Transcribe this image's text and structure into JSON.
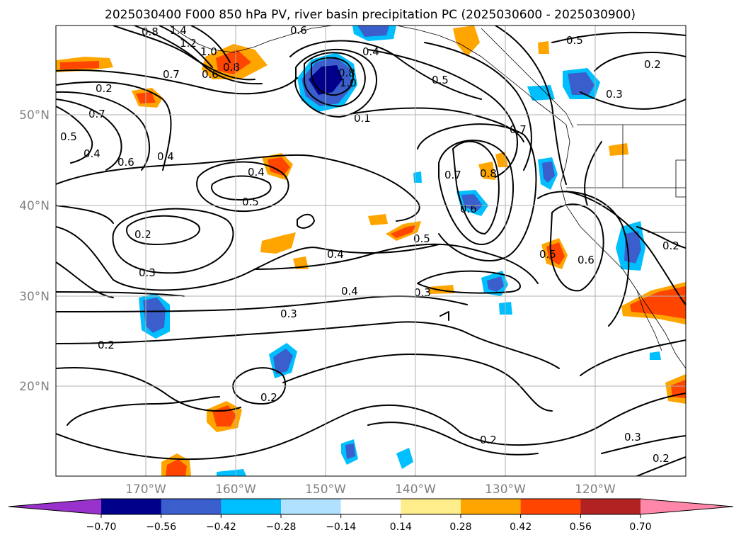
{
  "title": "2025030400 F000 850 hPa PV, river basin precipitation PC (2025030600 - 2025030900)",
  "lat_labels": [
    "50°N",
    "40°N",
    "30°N",
    "20°N"
  ],
  "lon_labels": [
    "170°W",
    "160°W",
    "150°W",
    "140°W",
    "130°W",
    "120°W"
  ],
  "colorbar": {
    "tick_labels": [
      "−0.70",
      "−0.56",
      "−0.42",
      "−0.28",
      "−0.14",
      "0.14",
      "0.28",
      "0.42",
      "0.56",
      "0.70"
    ],
    "colors": [
      "#9932cc",
      "#00008b",
      "#3a5fcd",
      "#00bfff",
      "#b0e2ff",
      "#ffffff",
      "#ffec8b",
      "#ffa500",
      "#ff4500",
      "#b22222",
      "#ff88aa"
    ]
  },
  "contour_labels": [
    "1.4",
    "1.2",
    "1.0",
    "0.8",
    "0.6",
    "0.7",
    "0.8",
    "0.6",
    "0.2",
    "0.7",
    "0.5",
    "0.4",
    "0.6",
    "0.4",
    "0.8",
    "1.0",
    "0.4",
    "0.5",
    "0.1",
    "0.5",
    "0.2",
    "0.3",
    "0.7",
    "0.4",
    "0.5",
    "0.2",
    "0.3",
    "0.4",
    "0.5",
    "0.7",
    "0.6",
    "0.8",
    "0.4",
    "0.3",
    "0.3",
    "0.2",
    "0.5",
    "0.6",
    "0.2",
    "0.2",
    "0.2",
    "0.3",
    "0.2"
  ]
}
